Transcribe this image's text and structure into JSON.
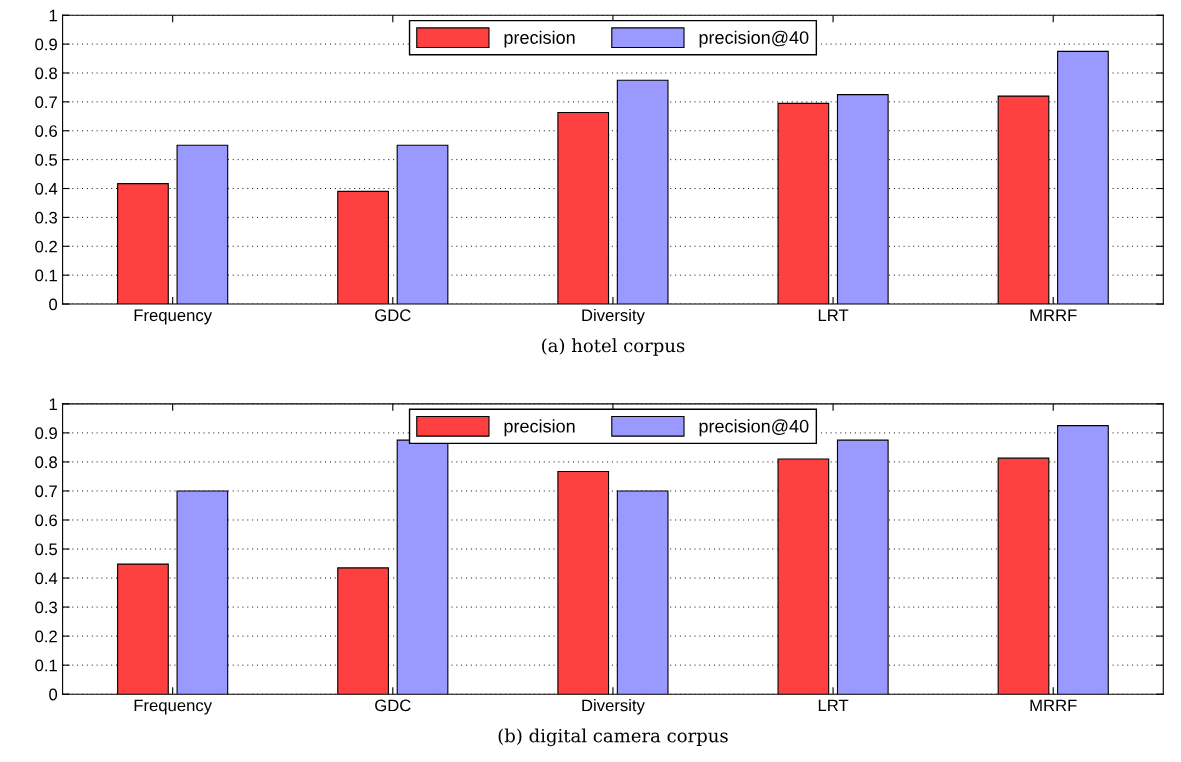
{
  "chart_data": [
    {
      "type": "bar",
      "xlabel": "(a) hotel corpus",
      "categories": [
        "Frequency",
        "GDC",
        "Diversity",
        "LRT",
        "MRRF"
      ],
      "series": [
        {
          "name": "precision",
          "color": "#ff4040",
          "values": [
            0.417,
            0.39,
            0.663,
            0.695,
            0.72
          ]
        },
        {
          "name": "precision@40",
          "color": "#9999ff",
          "values": [
            0.55,
            0.55,
            0.775,
            0.725,
            0.875
          ]
        }
      ],
      "ylim": [
        0,
        1
      ],
      "yticks": [
        0,
        0.1,
        0.2,
        0.3,
        0.4,
        0.5,
        0.6,
        0.7,
        0.8,
        0.9,
        1
      ],
      "grid": "y",
      "legend": "top"
    },
    {
      "type": "bar",
      "xlabel": "(b) digital camera corpus",
      "categories": [
        "Frequency",
        "GDC",
        "Diversity",
        "LRT",
        "MRRF"
      ],
      "series": [
        {
          "name": "precision",
          "color": "#ff4040",
          "values": [
            0.448,
            0.435,
            0.767,
            0.81,
            0.813
          ]
        },
        {
          "name": "precision@40",
          "color": "#9999ff",
          "values": [
            0.7,
            0.875,
            0.7,
            0.875,
            0.925
          ]
        }
      ],
      "ylim": [
        0,
        1
      ],
      "yticks": [
        0,
        0.1,
        0.2,
        0.3,
        0.4,
        0.5,
        0.6,
        0.7,
        0.8,
        0.9,
        1
      ],
      "grid": "y",
      "legend": "top"
    }
  ]
}
